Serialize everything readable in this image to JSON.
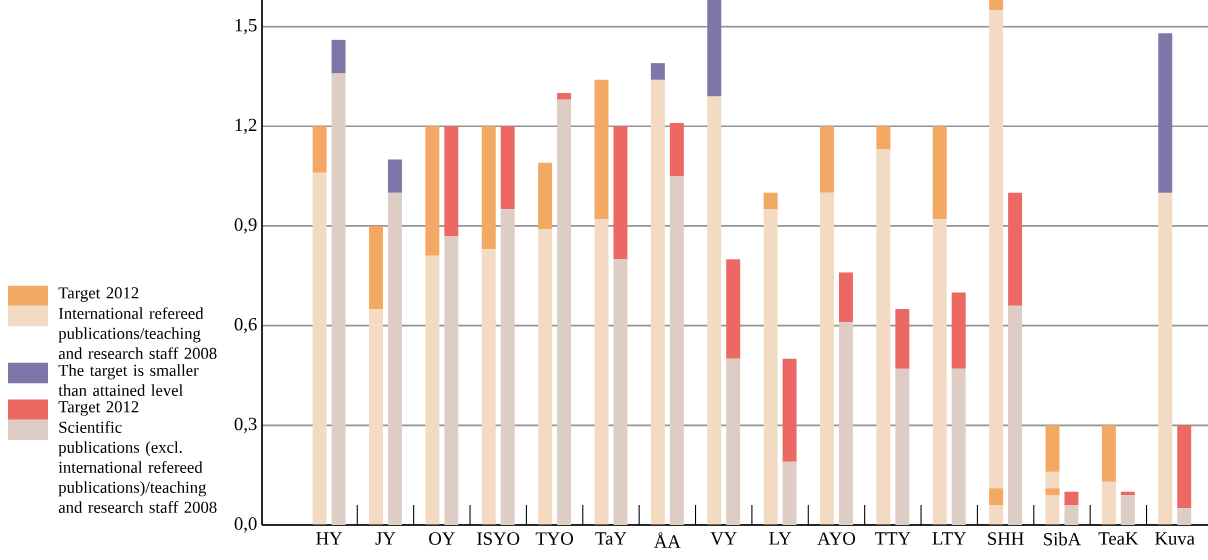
{
  "chart_data": [
    {
      "type": "bar",
      "categories": [
        "HY",
        "JY",
        "OY",
        "ISYO",
        "TYO",
        "TaY",
        "ÅA",
        "VY",
        "LY",
        "AYO",
        "TTY",
        "LTY",
        "SHH",
        "SibA",
        "TeaK",
        "Kuva"
      ],
      "series": [
        {
          "name": "Target 2012",
          "color": "#f3a864",
          "base": [
            1.06,
            0.65,
            0.81,
            0.83,
            0.89,
            0.92,
            null,
            null,
            0.95,
            1.0,
            1.13,
            0.92,
            1.55,
            0.16,
            0.13,
            null
          ],
          "values": [
            0.14,
            0.25,
            0.39,
            0.37,
            0.2,
            0.42,
            null,
            null,
            0.05,
            0.2,
            0.07,
            0.28,
            0.03,
            0.14,
            0.17,
            null
          ]
        },
        {
          "name": "International refereed publications/teaching and research staff 2008",
          "color": "#f2dbc2",
          "values": [
            1.06,
            0.65,
            0.81,
            0.83,
            0.89,
            0.92,
            1.34,
            1.29,
            0.95,
            1.0,
            1.13,
            0.92,
            1.55,
            0.16,
            0.13,
            1.0
          ]
        },
        {
          "name": "The target is smaller than attained level",
          "color": "#7d76a8",
          "base": [
            null,
            null,
            null,
            null,
            null,
            null,
            1.34,
            1.29,
            null,
            null,
            null,
            null,
            null,
            null,
            null,
            1.0
          ],
          "values": [
            null,
            null,
            null,
            null,
            null,
            null,
            0.05,
            0.29,
            null,
            null,
            null,
            null,
            null,
            null,
            null,
            0.48
          ]
        },
        {
          "color": "#f3a864",
          "base": [
            null,
            null,
            null,
            null,
            null,
            null,
            null,
            null,
            null,
            null,
            null,
            null,
            0.06,
            0.09,
            null,
            null
          ],
          "values": [
            null,
            null,
            null,
            null,
            null,
            null,
            null,
            null,
            null,
            null,
            null,
            null,
            0.05,
            0.02,
            null,
            null
          ]
        }
      ],
      "ylim": [
        0,
        1.58
      ],
      "yticks": [
        {
          "value": 0,
          "label": "0,0"
        },
        {
          "value": 0.3,
          "label": "0,3"
        },
        {
          "value": 0.6,
          "label": "0,6"
        },
        {
          "value": 0.9,
          "label": "0,9"
        },
        {
          "value": 1.2,
          "label": "1,2"
        },
        {
          "value": 1.5,
          "label": "1,5"
        }
      ],
      "grid": "y",
      "legend": "left"
    },
    {
      "type": "bar",
      "categories": [
        null,
        null,
        null,
        null,
        null,
        null,
        null,
        null,
        null,
        null,
        null,
        null,
        null,
        null,
        null,
        null
      ],
      "series": [
        {
          "name": "Target 2012",
          "color": "#ec6963",
          "base": [
            null,
            null,
            0.87,
            0.95,
            1.28,
            0.8,
            1.05,
            0.5,
            0.19,
            0.61,
            0.47,
            0.47,
            0.66,
            0.06,
            0.09,
            0.05
          ],
          "values": [
            null,
            null,
            0.33,
            0.25,
            0.02,
            0.4,
            0.16,
            0.3,
            0.31,
            0.15,
            0.18,
            0.23,
            0.34,
            0.04,
            0.01,
            0.25
          ]
        },
        {
          "name": "Scientific publications (excl. international refereed publications)/teaching and research staff 2008",
          "color": "#ddcdc5",
          "values": [
            1.36,
            1.0,
            0.87,
            0.95,
            1.28,
            0.8,
            1.05,
            0.5,
            0.19,
            0.61,
            0.47,
            0.47,
            0.66,
            0.06,
            0.09,
            0.05
          ]
        },
        {
          "color": "#7d76a8",
          "base": [
            1.36,
            1.0,
            null,
            null,
            null,
            null,
            null,
            null,
            null,
            null,
            null,
            null,
            null,
            null,
            null,
            null
          ],
          "values": [
            0.1,
            0.1,
            null,
            null,
            null,
            null,
            null,
            null,
            null,
            null,
            null,
            null,
            null,
            null,
            null,
            null
          ]
        }
      ],
      "ylim": [
        0,
        1.58
      ],
      "tick_labels": false,
      "legend": "left"
    }
  ]
}
